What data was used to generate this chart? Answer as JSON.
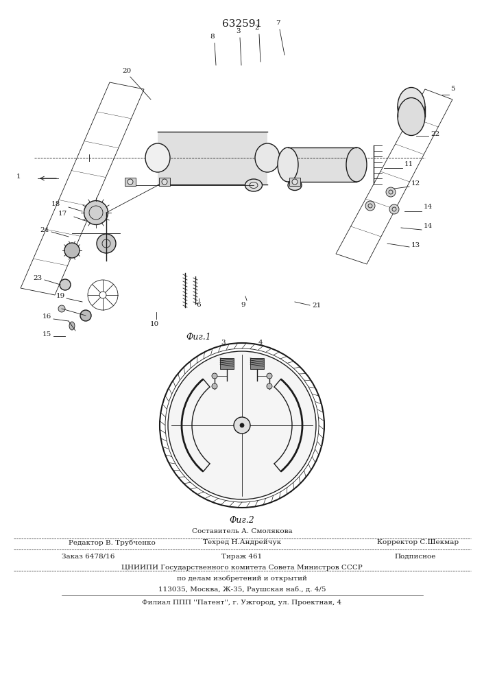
{
  "patent_number": "632591",
  "fig1_label": "Фиг.1",
  "fig2_label": "Фиг.2",
  "footer_line1": "Составитель А. Смолякова",
  "footer_line2_left": "Редактор В. Трубченко",
  "footer_line2_mid": "Техред Н.Андрейчук",
  "footer_line2_right": "Корректор С.Шекмар",
  "footer_line3_left": "Заказ 6478/16",
  "footer_line3_mid": "Тираж 461",
  "footer_line3_right": "Подписное",
  "footer_line4": "ЦНИИПИ Государственного комитета Совета Министров СССР",
  "footer_line5": "по делам изобретений и открытий",
  "footer_line6": "113035, Москва, Ж-35, Раушская наб., д. 4/5",
  "footer_line7": "Филиал ППП ''Патент'', г. Ужгород, ул. Проектная, 4",
  "bg_color": "#ffffff",
  "drawing_color": "#1a1a1a"
}
